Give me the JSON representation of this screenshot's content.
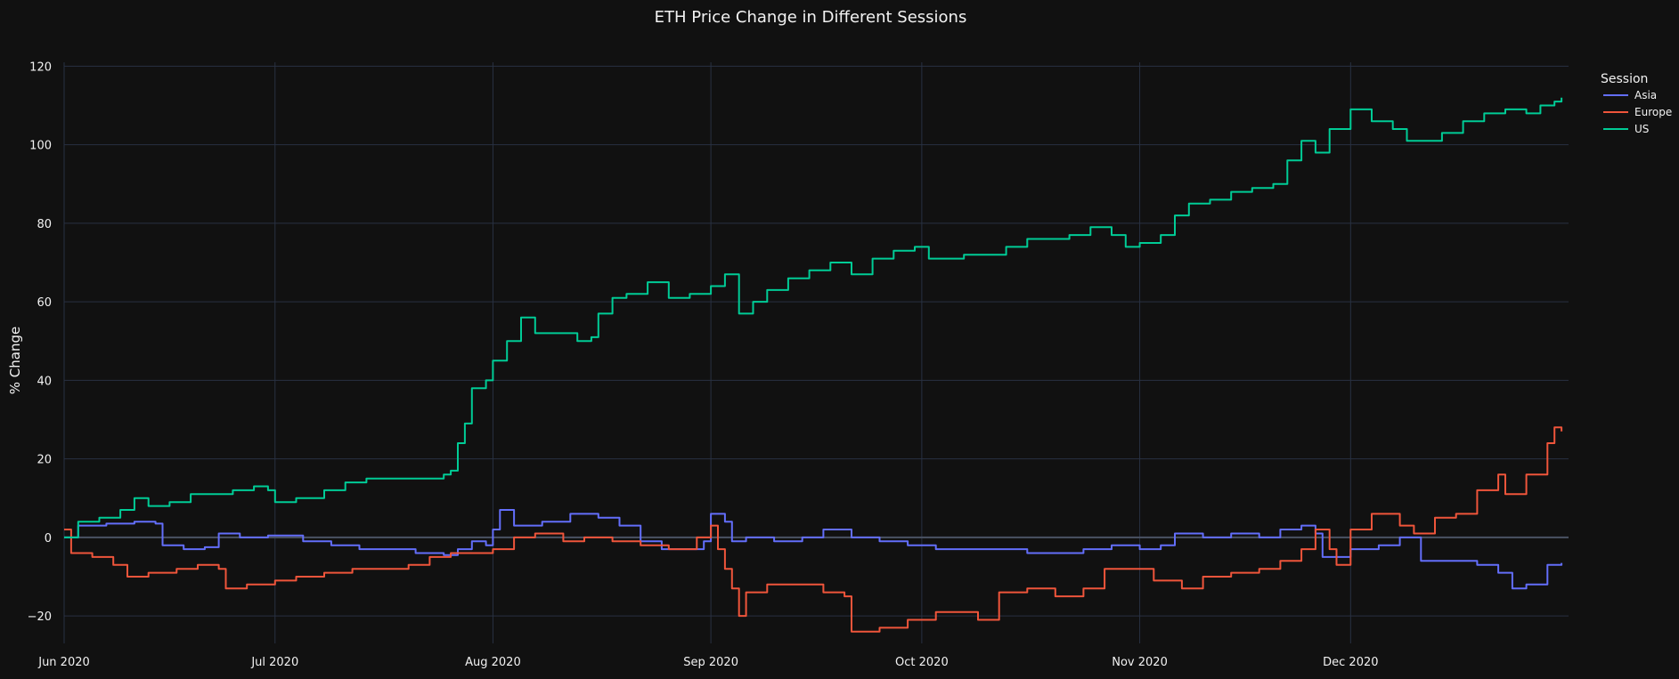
{
  "chart_data": {
    "type": "line",
    "title": "ETH Price Change in Different Sessions",
    "xlabel": "",
    "ylabel": "% Change",
    "x_range": [
      "2020-06-01",
      "2020-12-31"
    ],
    "ylim": [
      -27,
      121
    ],
    "grid": true,
    "x_ticks": [
      {
        "date": "2020-06-01",
        "label": "Jun 2020"
      },
      {
        "date": "2020-07-01",
        "label": "Jul 2020"
      },
      {
        "date": "2020-08-01",
        "label": "Aug 2020"
      },
      {
        "date": "2020-09-01",
        "label": "Sep 2020"
      },
      {
        "date": "2020-10-01",
        "label": "Oct 2020"
      },
      {
        "date": "2020-11-01",
        "label": "Nov 2020"
      },
      {
        "date": "2020-12-01",
        "label": "Dec 2020"
      }
    ],
    "y_ticks": [
      -20,
      0,
      20,
      40,
      60,
      80,
      100,
      120
    ],
    "legend": {
      "title": "Session",
      "placement": "top-right"
    },
    "series": [
      {
        "name": "Asia",
        "color": "#636efa",
        "points": [
          [
            "2020-06-01",
            0
          ],
          [
            "2020-06-03",
            3
          ],
          [
            "2020-06-07",
            3.5
          ],
          [
            "2020-06-11",
            4
          ],
          [
            "2020-06-14",
            3.5
          ],
          [
            "2020-06-15",
            -2
          ],
          [
            "2020-06-18",
            -3
          ],
          [
            "2020-06-21",
            -2.5
          ],
          [
            "2020-06-23",
            1
          ],
          [
            "2020-06-26",
            0
          ],
          [
            "2020-06-30",
            0.5
          ],
          [
            "2020-07-05",
            -1
          ],
          [
            "2020-07-09",
            -2
          ],
          [
            "2020-07-13",
            -3
          ],
          [
            "2020-07-17",
            -3
          ],
          [
            "2020-07-21",
            -4
          ],
          [
            "2020-07-25",
            -4.5
          ],
          [
            "2020-07-27",
            -3
          ],
          [
            "2020-07-29",
            -1
          ],
          [
            "2020-07-31",
            -2
          ],
          [
            "2020-08-01",
            2
          ],
          [
            "2020-08-02",
            7
          ],
          [
            "2020-08-04",
            3
          ],
          [
            "2020-08-08",
            4
          ],
          [
            "2020-08-12",
            6
          ],
          [
            "2020-08-16",
            5
          ],
          [
            "2020-08-19",
            3
          ],
          [
            "2020-08-22",
            -1
          ],
          [
            "2020-08-25",
            -3
          ],
          [
            "2020-08-29",
            -3
          ],
          [
            "2020-08-31",
            -1
          ],
          [
            "2020-09-01",
            6
          ],
          [
            "2020-09-03",
            4
          ],
          [
            "2020-09-04",
            -1
          ],
          [
            "2020-09-06",
            0
          ],
          [
            "2020-09-10",
            -1
          ],
          [
            "2020-09-14",
            0
          ],
          [
            "2020-09-17",
            2
          ],
          [
            "2020-09-21",
            0
          ],
          [
            "2020-09-25",
            -1
          ],
          [
            "2020-09-29",
            -2
          ],
          [
            "2020-10-03",
            -3
          ],
          [
            "2020-10-08",
            -3
          ],
          [
            "2020-10-12",
            -3
          ],
          [
            "2020-10-16",
            -4
          ],
          [
            "2020-10-20",
            -4
          ],
          [
            "2020-10-24",
            -3
          ],
          [
            "2020-10-28",
            -2
          ],
          [
            "2020-11-01",
            -3
          ],
          [
            "2020-11-04",
            -2
          ],
          [
            "2020-11-06",
            1
          ],
          [
            "2020-11-10",
            0
          ],
          [
            "2020-11-14",
            1
          ],
          [
            "2020-11-18",
            0
          ],
          [
            "2020-11-21",
            2
          ],
          [
            "2020-11-24",
            3
          ],
          [
            "2020-11-26",
            1
          ],
          [
            "2020-11-27",
            -5
          ],
          [
            "2020-12-01",
            -3
          ],
          [
            "2020-12-05",
            -2
          ],
          [
            "2020-12-08",
            0
          ],
          [
            "2020-12-11",
            -6
          ],
          [
            "2020-12-15",
            -6
          ],
          [
            "2020-12-19",
            -7
          ],
          [
            "2020-12-22",
            -9
          ],
          [
            "2020-12-24",
            -13
          ],
          [
            "2020-12-26",
            -12
          ],
          [
            "2020-12-29",
            -7
          ],
          [
            "2020-12-31",
            -6.5
          ]
        ]
      },
      {
        "name": "Europe",
        "color": "#ef553b",
        "points": [
          [
            "2020-06-01",
            2
          ],
          [
            "2020-06-02",
            -4
          ],
          [
            "2020-06-05",
            -5
          ],
          [
            "2020-06-08",
            -7
          ],
          [
            "2020-06-10",
            -10
          ],
          [
            "2020-06-13",
            -9
          ],
          [
            "2020-06-17",
            -8
          ],
          [
            "2020-06-20",
            -7
          ],
          [
            "2020-06-23",
            -8
          ],
          [
            "2020-06-24",
            -13
          ],
          [
            "2020-06-27",
            -12
          ],
          [
            "2020-07-01",
            -11
          ],
          [
            "2020-07-04",
            -10
          ],
          [
            "2020-07-08",
            -9
          ],
          [
            "2020-07-12",
            -8
          ],
          [
            "2020-07-16",
            -8
          ],
          [
            "2020-07-20",
            -7
          ],
          [
            "2020-07-23",
            -5
          ],
          [
            "2020-07-26",
            -4
          ],
          [
            "2020-07-29",
            -4
          ],
          [
            "2020-08-01",
            -3
          ],
          [
            "2020-08-04",
            0
          ],
          [
            "2020-08-07",
            1
          ],
          [
            "2020-08-11",
            -1
          ],
          [
            "2020-08-14",
            0
          ],
          [
            "2020-08-18",
            -1
          ],
          [
            "2020-08-22",
            -2
          ],
          [
            "2020-08-26",
            -3
          ],
          [
            "2020-08-30",
            0
          ],
          [
            "2020-09-01",
            3
          ],
          [
            "2020-09-02",
            -3
          ],
          [
            "2020-09-03",
            -8
          ],
          [
            "2020-09-04",
            -13
          ],
          [
            "2020-09-05",
            -20
          ],
          [
            "2020-09-06",
            -14
          ],
          [
            "2020-09-09",
            -12
          ],
          [
            "2020-09-13",
            -12
          ],
          [
            "2020-09-17",
            -14
          ],
          [
            "2020-09-20",
            -15
          ],
          [
            "2020-09-21",
            -24
          ],
          [
            "2020-09-25",
            -23
          ],
          [
            "2020-09-29",
            -21
          ],
          [
            "2020-10-03",
            -19
          ],
          [
            "2020-10-07",
            -19
          ],
          [
            "2020-10-09",
            -21
          ],
          [
            "2020-10-12",
            -14
          ],
          [
            "2020-10-16",
            -13
          ],
          [
            "2020-10-20",
            -15
          ],
          [
            "2020-10-24",
            -13
          ],
          [
            "2020-10-27",
            -8
          ],
          [
            "2020-10-31",
            -8
          ],
          [
            "2020-11-03",
            -11
          ],
          [
            "2020-11-07",
            -13
          ],
          [
            "2020-11-10",
            -10
          ],
          [
            "2020-11-14",
            -9
          ],
          [
            "2020-11-18",
            -8
          ],
          [
            "2020-11-21",
            -6
          ],
          [
            "2020-11-24",
            -3
          ],
          [
            "2020-11-26",
            2
          ],
          [
            "2020-11-28",
            -3
          ],
          [
            "2020-11-29",
            -7
          ],
          [
            "2020-12-01",
            2
          ],
          [
            "2020-12-04",
            6
          ],
          [
            "2020-12-08",
            3
          ],
          [
            "2020-12-10",
            1
          ],
          [
            "2020-12-13",
            5
          ],
          [
            "2020-12-16",
            6
          ],
          [
            "2020-12-19",
            12
          ],
          [
            "2020-12-22",
            16
          ],
          [
            "2020-12-23",
            11
          ],
          [
            "2020-12-26",
            16
          ],
          [
            "2020-12-28",
            16
          ],
          [
            "2020-12-29",
            24
          ],
          [
            "2020-12-30",
            28
          ],
          [
            "2020-12-31",
            27
          ]
        ]
      },
      {
        "name": "US",
        "color": "#00cc96",
        "points": [
          [
            "2020-06-01",
            0
          ],
          [
            "2020-06-03",
            4
          ],
          [
            "2020-06-06",
            5
          ],
          [
            "2020-06-09",
            7
          ],
          [
            "2020-06-11",
            10
          ],
          [
            "2020-06-13",
            8
          ],
          [
            "2020-06-16",
            9
          ],
          [
            "2020-06-19",
            11
          ],
          [
            "2020-06-22",
            11
          ],
          [
            "2020-06-25",
            12
          ],
          [
            "2020-06-28",
            13
          ],
          [
            "2020-06-30",
            12
          ],
          [
            "2020-07-01",
            9
          ],
          [
            "2020-07-04",
            10
          ],
          [
            "2020-07-08",
            12
          ],
          [
            "2020-07-11",
            14
          ],
          [
            "2020-07-14",
            15
          ],
          [
            "2020-07-18",
            15
          ],
          [
            "2020-07-22",
            15
          ],
          [
            "2020-07-25",
            16
          ],
          [
            "2020-07-26",
            17
          ],
          [
            "2020-07-27",
            24
          ],
          [
            "2020-07-28",
            29
          ],
          [
            "2020-07-29",
            38
          ],
          [
            "2020-07-31",
            40
          ],
          [
            "2020-08-01",
            45
          ],
          [
            "2020-08-03",
            50
          ],
          [
            "2020-08-05",
            56
          ],
          [
            "2020-08-07",
            52
          ],
          [
            "2020-08-10",
            52
          ],
          [
            "2020-08-13",
            50
          ],
          [
            "2020-08-15",
            51
          ],
          [
            "2020-08-16",
            57
          ],
          [
            "2020-08-18",
            61
          ],
          [
            "2020-08-20",
            62
          ],
          [
            "2020-08-23",
            65
          ],
          [
            "2020-08-26",
            61
          ],
          [
            "2020-08-29",
            62
          ],
          [
            "2020-09-01",
            64
          ],
          [
            "2020-09-03",
            67
          ],
          [
            "2020-09-05",
            57
          ],
          [
            "2020-09-07",
            60
          ],
          [
            "2020-09-09",
            63
          ],
          [
            "2020-09-12",
            66
          ],
          [
            "2020-09-15",
            68
          ],
          [
            "2020-09-18",
            70
          ],
          [
            "2020-09-21",
            67
          ],
          [
            "2020-09-24",
            71
          ],
          [
            "2020-09-27",
            73
          ],
          [
            "2020-09-30",
            74
          ],
          [
            "2020-10-02",
            71
          ],
          [
            "2020-10-05",
            71
          ],
          [
            "2020-10-07",
            72
          ],
          [
            "2020-10-10",
            72
          ],
          [
            "2020-10-13",
            74
          ],
          [
            "2020-10-16",
            76
          ],
          [
            "2020-10-19",
            76
          ],
          [
            "2020-10-22",
            77
          ],
          [
            "2020-10-25",
            79
          ],
          [
            "2020-10-28",
            77
          ],
          [
            "2020-10-30",
            74
          ],
          [
            "2020-11-01",
            75
          ],
          [
            "2020-11-04",
            77
          ],
          [
            "2020-11-06",
            82
          ],
          [
            "2020-11-08",
            85
          ],
          [
            "2020-11-11",
            86
          ],
          [
            "2020-11-14",
            88
          ],
          [
            "2020-11-17",
            89
          ],
          [
            "2020-11-20",
            90
          ],
          [
            "2020-11-22",
            96
          ],
          [
            "2020-11-24",
            101
          ],
          [
            "2020-11-26",
            98
          ],
          [
            "2020-11-28",
            104
          ],
          [
            "2020-12-01",
            109
          ],
          [
            "2020-12-04",
            106
          ],
          [
            "2020-12-07",
            104
          ],
          [
            "2020-12-09",
            101
          ],
          [
            "2020-12-11",
            101
          ],
          [
            "2020-12-14",
            103
          ],
          [
            "2020-12-17",
            106
          ],
          [
            "2020-12-20",
            108
          ],
          [
            "2020-12-23",
            109
          ],
          [
            "2020-12-26",
            108
          ],
          [
            "2020-12-28",
            110
          ],
          [
            "2020-12-30",
            111
          ],
          [
            "2020-12-31",
            112
          ]
        ]
      }
    ]
  }
}
